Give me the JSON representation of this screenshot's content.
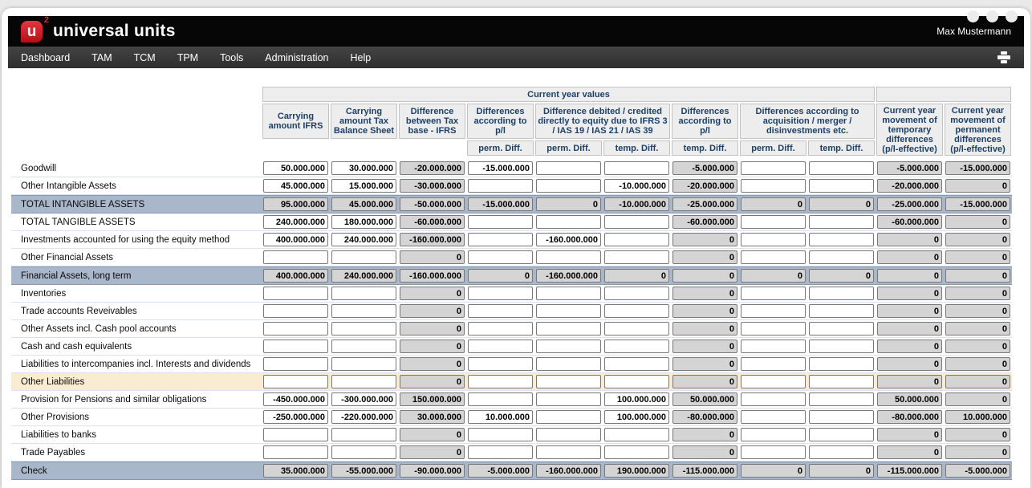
{
  "app": {
    "logo_letter": "u",
    "logo_sup": "2",
    "brand": "universal units",
    "user": "Max Mustermann",
    "nav": [
      "Dashboard",
      "TAM",
      "TCM",
      "TPM",
      "Tools",
      "Administration",
      "Help"
    ]
  },
  "colors": {
    "brand_red": "#d8262c",
    "topbar": "#060606",
    "navbar": "#333333",
    "header_text": "#1d4066",
    "row_highlight_blue": "#a9b7ca",
    "row_highlight_cream": "#faecd2",
    "calc_field_bg": "#d4d4d4"
  },
  "table": {
    "header": {
      "group_label": "Current year values",
      "columns": [
        "Carrying amount IFRS",
        "Carrying amount Tax Balance Sheet",
        "Difference between Tax base - IFRS",
        "Differences according to p/l",
        "Difference debited / credited directly to equity due to IFRS 3 / IAS 19 / IAS 21 / IAS 39",
        "Differences according to p/l",
        "Differences according to acquisition / merger / disinvestments etc.",
        "Current year movement of temporary differences (p/l-effective)",
        "Current year movement of permanent differences (p/l-effective)"
      ],
      "subs": [
        "perm. Diff.",
        "perm. Diff.",
        "temp. Diff.",
        "temp. Diff.",
        "perm. Diff.",
        "temp. Diff."
      ]
    },
    "rows": [
      {
        "label": "Goodwill",
        "style": "normal",
        "cells": [
          {
            "v": "50.000.000",
            "t": "w"
          },
          {
            "v": "30.000.000",
            "t": "w"
          },
          {
            "v": "-20.000.000",
            "t": "g"
          },
          {
            "v": "-15.000.000",
            "t": "w"
          },
          {
            "v": "",
            "t": "w"
          },
          {
            "v": "",
            "t": "w"
          },
          {
            "v": "-5.000.000",
            "t": "g"
          },
          {
            "v": "",
            "t": "w"
          },
          {
            "v": "",
            "t": "w"
          },
          {
            "v": "-5.000.000",
            "t": "g"
          },
          {
            "v": "-15.000.000",
            "t": "g"
          }
        ]
      },
      {
        "label": "Other Intangible Assets",
        "style": "normal",
        "cells": [
          {
            "v": "45.000.000",
            "t": "w"
          },
          {
            "v": "15.000.000",
            "t": "w"
          },
          {
            "v": "-30.000.000",
            "t": "g"
          },
          {
            "v": "",
            "t": "w"
          },
          {
            "v": "",
            "t": "w"
          },
          {
            "v": "-10.000.000",
            "t": "w"
          },
          {
            "v": "-20.000.000",
            "t": "g"
          },
          {
            "v": "",
            "t": "w"
          },
          {
            "v": "",
            "t": "w"
          },
          {
            "v": "-20.000.000",
            "t": "g"
          },
          {
            "v": "0",
            "t": "g"
          }
        ]
      },
      {
        "label": "TOTAL INTANGIBLE ASSETS",
        "style": "blue",
        "cells": [
          {
            "v": "95.000.000",
            "t": "g"
          },
          {
            "v": "45.000.000",
            "t": "g"
          },
          {
            "v": "-50.000.000",
            "t": "g"
          },
          {
            "v": "-15.000.000",
            "t": "g"
          },
          {
            "v": "0",
            "t": "g"
          },
          {
            "v": "-10.000.000",
            "t": "g"
          },
          {
            "v": "-25.000.000",
            "t": "g"
          },
          {
            "v": "0",
            "t": "g"
          },
          {
            "v": "0",
            "t": "g"
          },
          {
            "v": "-25.000.000",
            "t": "g"
          },
          {
            "v": "-15.000.000",
            "t": "g"
          }
        ]
      },
      {
        "label": "TOTAL TANGIBLE ASSETS",
        "style": "normal",
        "cells": [
          {
            "v": "240.000.000",
            "t": "w"
          },
          {
            "v": "180.000.000",
            "t": "w"
          },
          {
            "v": "-60.000.000",
            "t": "g"
          },
          {
            "v": "",
            "t": "w"
          },
          {
            "v": "",
            "t": "w"
          },
          {
            "v": "",
            "t": "w"
          },
          {
            "v": "-60.000.000",
            "t": "g"
          },
          {
            "v": "",
            "t": "w"
          },
          {
            "v": "",
            "t": "w"
          },
          {
            "v": "-60.000.000",
            "t": "g"
          },
          {
            "v": "0",
            "t": "g"
          }
        ]
      },
      {
        "label": "Investments accounted for using the equity method",
        "style": "normal",
        "cells": [
          {
            "v": "400.000.000",
            "t": "w"
          },
          {
            "v": "240.000.000",
            "t": "w"
          },
          {
            "v": "-160.000.000",
            "t": "g"
          },
          {
            "v": "",
            "t": "w"
          },
          {
            "v": "-160.000.000",
            "t": "w"
          },
          {
            "v": "",
            "t": "w"
          },
          {
            "v": "0",
            "t": "g"
          },
          {
            "v": "",
            "t": "w"
          },
          {
            "v": "",
            "t": "w"
          },
          {
            "v": "0",
            "t": "g"
          },
          {
            "v": "0",
            "t": "g"
          }
        ]
      },
      {
        "label": "Other Financial Assets",
        "style": "normal",
        "cells": [
          {
            "v": "",
            "t": "w"
          },
          {
            "v": "",
            "t": "w"
          },
          {
            "v": "0",
            "t": "g"
          },
          {
            "v": "",
            "t": "w"
          },
          {
            "v": "",
            "t": "w"
          },
          {
            "v": "",
            "t": "w"
          },
          {
            "v": "0",
            "t": "g"
          },
          {
            "v": "",
            "t": "w"
          },
          {
            "v": "",
            "t": "w"
          },
          {
            "v": "0",
            "t": "g"
          },
          {
            "v": "0",
            "t": "g"
          }
        ]
      },
      {
        "label": "Financial Assets, long term",
        "style": "blue",
        "cells": [
          {
            "v": "400.000.000",
            "t": "g"
          },
          {
            "v": "240.000.000",
            "t": "g"
          },
          {
            "v": "-160.000.000",
            "t": "g"
          },
          {
            "v": "0",
            "t": "g"
          },
          {
            "v": "-160.000.000",
            "t": "g"
          },
          {
            "v": "0",
            "t": "g"
          },
          {
            "v": "0",
            "t": "g"
          },
          {
            "v": "0",
            "t": "g"
          },
          {
            "v": "0",
            "t": "g"
          },
          {
            "v": "0",
            "t": "g"
          },
          {
            "v": "0",
            "t": "g"
          }
        ]
      },
      {
        "label": "Inventories",
        "style": "normal",
        "cells": [
          {
            "v": "",
            "t": "w"
          },
          {
            "v": "",
            "t": "w"
          },
          {
            "v": "0",
            "t": "g"
          },
          {
            "v": "",
            "t": "w"
          },
          {
            "v": "",
            "t": "w"
          },
          {
            "v": "",
            "t": "w"
          },
          {
            "v": "0",
            "t": "g"
          },
          {
            "v": "",
            "t": "w"
          },
          {
            "v": "",
            "t": "w"
          },
          {
            "v": "0",
            "t": "g"
          },
          {
            "v": "0",
            "t": "g"
          }
        ]
      },
      {
        "label": "Trade accounts Reveivables",
        "style": "normal",
        "cells": [
          {
            "v": "",
            "t": "w"
          },
          {
            "v": "",
            "t": "w"
          },
          {
            "v": "0",
            "t": "g"
          },
          {
            "v": "",
            "t": "w"
          },
          {
            "v": "",
            "t": "w"
          },
          {
            "v": "",
            "t": "w"
          },
          {
            "v": "0",
            "t": "g"
          },
          {
            "v": "",
            "t": "w"
          },
          {
            "v": "",
            "t": "w"
          },
          {
            "v": "0",
            "t": "g"
          },
          {
            "v": "0",
            "t": "g"
          }
        ]
      },
      {
        "label": "Other Assets incl. Cash pool accounts",
        "style": "normal",
        "cells": [
          {
            "v": "",
            "t": "w"
          },
          {
            "v": "",
            "t": "w"
          },
          {
            "v": "0",
            "t": "g"
          },
          {
            "v": "",
            "t": "w"
          },
          {
            "v": "",
            "t": "w"
          },
          {
            "v": "",
            "t": "w"
          },
          {
            "v": "0",
            "t": "g"
          },
          {
            "v": "",
            "t": "w"
          },
          {
            "v": "",
            "t": "w"
          },
          {
            "v": "0",
            "t": "g"
          },
          {
            "v": "0",
            "t": "g"
          }
        ]
      },
      {
        "label": "Cash and cash equivalents",
        "style": "normal",
        "cells": [
          {
            "v": "",
            "t": "w"
          },
          {
            "v": "",
            "t": "w"
          },
          {
            "v": "0",
            "t": "g"
          },
          {
            "v": "",
            "t": "w"
          },
          {
            "v": "",
            "t": "w"
          },
          {
            "v": "",
            "t": "w"
          },
          {
            "v": "0",
            "t": "g"
          },
          {
            "v": "",
            "t": "w"
          },
          {
            "v": "",
            "t": "w"
          },
          {
            "v": "0",
            "t": "g"
          },
          {
            "v": "0",
            "t": "g"
          }
        ]
      },
      {
        "label": "Liabilities to intercompanies incl. Interests and dividends",
        "style": "normal",
        "cells": [
          {
            "v": "",
            "t": "w"
          },
          {
            "v": "",
            "t": "w"
          },
          {
            "v": "0",
            "t": "g"
          },
          {
            "v": "",
            "t": "w"
          },
          {
            "v": "",
            "t": "w"
          },
          {
            "v": "",
            "t": "w"
          },
          {
            "v": "0",
            "t": "g"
          },
          {
            "v": "",
            "t": "w"
          },
          {
            "v": "",
            "t": "w"
          },
          {
            "v": "0",
            "t": "g"
          },
          {
            "v": "0",
            "t": "g"
          }
        ]
      },
      {
        "label": "Other Liabilities",
        "style": "cream",
        "cells": [
          {
            "v": "",
            "t": "w"
          },
          {
            "v": "",
            "t": "w"
          },
          {
            "v": "0",
            "t": "g"
          },
          {
            "v": "",
            "t": "w"
          },
          {
            "v": "",
            "t": "w"
          },
          {
            "v": "",
            "t": "w"
          },
          {
            "v": "0",
            "t": "g"
          },
          {
            "v": "",
            "t": "w"
          },
          {
            "v": "",
            "t": "w"
          },
          {
            "v": "0",
            "t": "g"
          },
          {
            "v": "0",
            "t": "g"
          }
        ]
      },
      {
        "label": "Provision for Pensions and similar obligations",
        "style": "normal",
        "cells": [
          {
            "v": "-450.000.000",
            "t": "w"
          },
          {
            "v": "-300.000.000",
            "t": "w"
          },
          {
            "v": "150.000.000",
            "t": "g"
          },
          {
            "v": "",
            "t": "w"
          },
          {
            "v": "",
            "t": "w"
          },
          {
            "v": "100.000.000",
            "t": "w"
          },
          {
            "v": "50.000.000",
            "t": "g"
          },
          {
            "v": "",
            "t": "w"
          },
          {
            "v": "",
            "t": "w"
          },
          {
            "v": "50.000.000",
            "t": "g"
          },
          {
            "v": "0",
            "t": "g"
          }
        ]
      },
      {
        "label": "Other Provisions",
        "style": "normal",
        "cells": [
          {
            "v": "-250.000.000",
            "t": "w"
          },
          {
            "v": "-220.000.000",
            "t": "w"
          },
          {
            "v": "30.000.000",
            "t": "g"
          },
          {
            "v": "10.000.000",
            "t": "w"
          },
          {
            "v": "",
            "t": "w"
          },
          {
            "v": "100.000.000",
            "t": "w"
          },
          {
            "v": "-80.000.000",
            "t": "g"
          },
          {
            "v": "",
            "t": "w"
          },
          {
            "v": "",
            "t": "w"
          },
          {
            "v": "-80.000.000",
            "t": "g"
          },
          {
            "v": "10.000.000",
            "t": "g"
          }
        ]
      },
      {
        "label": "Liabilities to banks",
        "style": "normal",
        "cells": [
          {
            "v": "",
            "t": "w"
          },
          {
            "v": "",
            "t": "w"
          },
          {
            "v": "0",
            "t": "g"
          },
          {
            "v": "",
            "t": "w"
          },
          {
            "v": "",
            "t": "w"
          },
          {
            "v": "",
            "t": "w"
          },
          {
            "v": "0",
            "t": "g"
          },
          {
            "v": "",
            "t": "w"
          },
          {
            "v": "",
            "t": "w"
          },
          {
            "v": "0",
            "t": "g"
          },
          {
            "v": "0",
            "t": "g"
          }
        ]
      },
      {
        "label": "Trade Payables",
        "style": "normal",
        "cells": [
          {
            "v": "",
            "t": "w"
          },
          {
            "v": "",
            "t": "w"
          },
          {
            "v": "0",
            "t": "g"
          },
          {
            "v": "",
            "t": "w"
          },
          {
            "v": "",
            "t": "w"
          },
          {
            "v": "",
            "t": "w"
          },
          {
            "v": "0",
            "t": "g"
          },
          {
            "v": "",
            "t": "w"
          },
          {
            "v": "",
            "t": "w"
          },
          {
            "v": "0",
            "t": "g"
          },
          {
            "v": "0",
            "t": "g"
          }
        ]
      },
      {
        "label": "Check",
        "style": "blue",
        "cells": [
          {
            "v": "35.000.000",
            "t": "g"
          },
          {
            "v": "-55.000.000",
            "t": "g"
          },
          {
            "v": "-90.000.000",
            "t": "g"
          },
          {
            "v": "-5.000.000",
            "t": "g"
          },
          {
            "v": "-160.000.000",
            "t": "g"
          },
          {
            "v": "190.000.000",
            "t": "g"
          },
          {
            "v": "-115.000.000",
            "t": "g"
          },
          {
            "v": "0",
            "t": "g"
          },
          {
            "v": "0",
            "t": "g"
          },
          {
            "v": "-115.000.000",
            "t": "g"
          },
          {
            "v": "-5.000.000",
            "t": "g"
          }
        ]
      }
    ]
  }
}
